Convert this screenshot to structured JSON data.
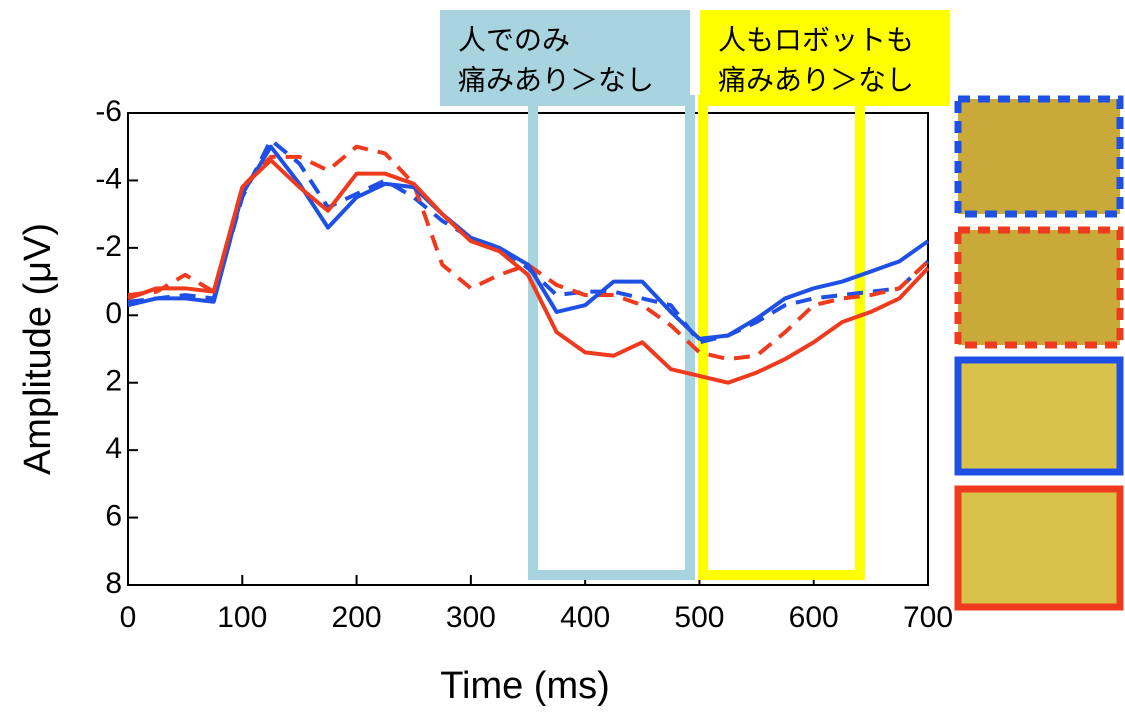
{
  "chart_data": {
    "type": "line",
    "xlabel": "Time (ms)",
    "ylabel": "Amplitude (μV)",
    "x": [
      0,
      25,
      50,
      75,
      100,
      125,
      150,
      175,
      200,
      225,
      250,
      275,
      300,
      325,
      350,
      375,
      400,
      425,
      450,
      475,
      500,
      525,
      550,
      575,
      600,
      625,
      650,
      675,
      700
    ],
    "series": [
      {
        "color": "#1e50e6",
        "dashed": true,
        "values": [
          -0.4,
          -0.5,
          -0.6,
          -0.5,
          -3.5,
          -5.2,
          -4.5,
          -3.2,
          -3.6,
          -4.0,
          -3.5,
          -2.8,
          -2.3,
          -2.0,
          -1.4,
          -0.6,
          -0.7,
          -0.7,
          -0.5,
          -0.3,
          0.8,
          0.6,
          0.2,
          -0.3,
          -0.5,
          -0.6,
          -0.7,
          -0.8,
          -1.6
        ]
      },
      {
        "color": "#f03a1e",
        "dashed": true,
        "values": [
          -0.6,
          -0.7,
          -1.2,
          -0.7,
          -3.8,
          -4.7,
          -4.7,
          -4.3,
          -5.0,
          -4.8,
          -3.9,
          -1.5,
          -0.8,
          -1.2,
          -1.5,
          -0.9,
          -0.6,
          -0.6,
          -0.3,
          0.3,
          1.1,
          1.3,
          1.2,
          0.5,
          -0.3,
          -0.5,
          -0.6,
          -0.8,
          -1.6
        ]
      },
      {
        "color": "#1e50e6",
        "dashed": false,
        "values": [
          -0.3,
          -0.5,
          -0.5,
          -0.4,
          -3.6,
          -5.0,
          -3.9,
          -2.6,
          -3.5,
          -3.9,
          -3.8,
          -3.0,
          -2.3,
          -2.0,
          -1.5,
          -0.1,
          -0.3,
          -1.0,
          -1.0,
          -0.1,
          0.7,
          0.6,
          0.1,
          -0.5,
          -0.8,
          -1.0,
          -1.3,
          -1.6,
          -2.2
        ]
      },
      {
        "color": "#f03a1e",
        "dashed": false,
        "values": [
          -0.5,
          -0.8,
          -0.8,
          -0.7,
          -3.8,
          -4.6,
          -3.8,
          -3.1,
          -4.2,
          -4.2,
          -3.9,
          -3.0,
          -2.2,
          -1.9,
          -1.2,
          0.5,
          1.1,
          1.2,
          0.8,
          1.6,
          1.8,
          2.0,
          1.7,
          1.3,
          0.8,
          0.2,
          -0.1,
          -0.5,
          -1.4
        ]
      }
    ],
    "xlim": [
      0,
      700
    ],
    "xticks": [
      0,
      100,
      200,
      300,
      400,
      500,
      600,
      700
    ],
    "ylim": [
      -6,
      8
    ],
    "yticks": [
      -6,
      -4,
      -2,
      0,
      2,
      4,
      6,
      8
    ],
    "y_inverted": true,
    "annotations": [
      {
        "lines": [
          "人でのみ",
          "痛みあり＞なし"
        ],
        "color": "#a8d4e0"
      },
      {
        "lines": [
          "人もロボットも",
          "痛みあり＞なし"
        ],
        "color": "#ffff00"
      }
    ]
  }
}
